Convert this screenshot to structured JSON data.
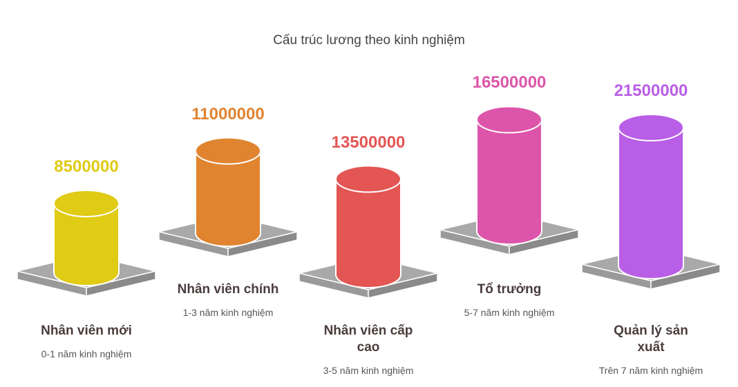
{
  "title": "Cấu trúc lương theo kinh nghiệm",
  "items": [
    {
      "label": "Nhân viên mới",
      "sublabel": "0-1 năm kinh nghiệm",
      "value": 8500000,
      "color": "#e0cb15"
    },
    {
      "label": "Nhân viên chính",
      "sublabel": "1-3 năm kinh nghiệm",
      "value": 11000000,
      "color": "#e08430"
    },
    {
      "label": "Nhân viên cấp cao",
      "sublabel": "3-5 năm kinh nghiệm",
      "value": 13500000,
      "color": "#e35653"
    },
    {
      "label": "Tổ trưởng",
      "sublabel": "5-7 năm kinh nghiệm",
      "value": 16500000,
      "color": "#dd55aa"
    },
    {
      "label": "Quản lý sản xuất",
      "sublabel": "Trên 7 năm kinh nghiệm",
      "value": 21500000,
      "color": "#b95ee6"
    }
  ]
}
